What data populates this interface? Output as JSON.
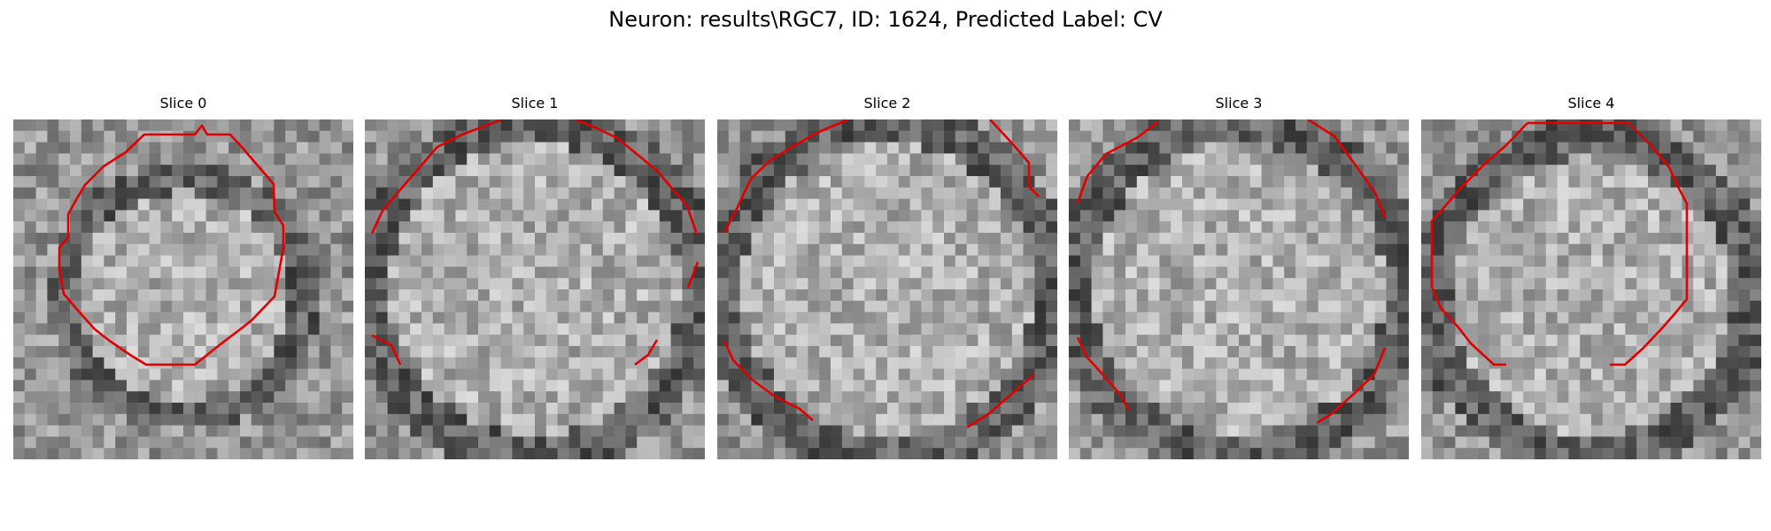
{
  "figure": {
    "title": "Neuron: results\\RGC7, ID: 1624, Predicted Label: CV",
    "outline_color": "#e00000",
    "colormap": "gray"
  },
  "panels": [
    {
      "title": "Slice 0",
      "spot": [
        0.5,
        0.52
      ],
      "radius": 0.36,
      "seed": 11
    },
    {
      "title": "Slice 1",
      "spot": [
        0.5,
        0.5
      ],
      "radius": 0.5,
      "seed": 23
    },
    {
      "title": "Slice 2",
      "spot": [
        0.5,
        0.5
      ],
      "radius": 0.5,
      "seed": 37
    },
    {
      "title": "Slice 3",
      "spot": [
        0.5,
        0.5
      ],
      "radius": 0.5,
      "seed": 41
    },
    {
      "title": "Slice 4",
      "spot": [
        0.5,
        0.52
      ],
      "radius": 0.48,
      "seed": 53
    }
  ]
}
